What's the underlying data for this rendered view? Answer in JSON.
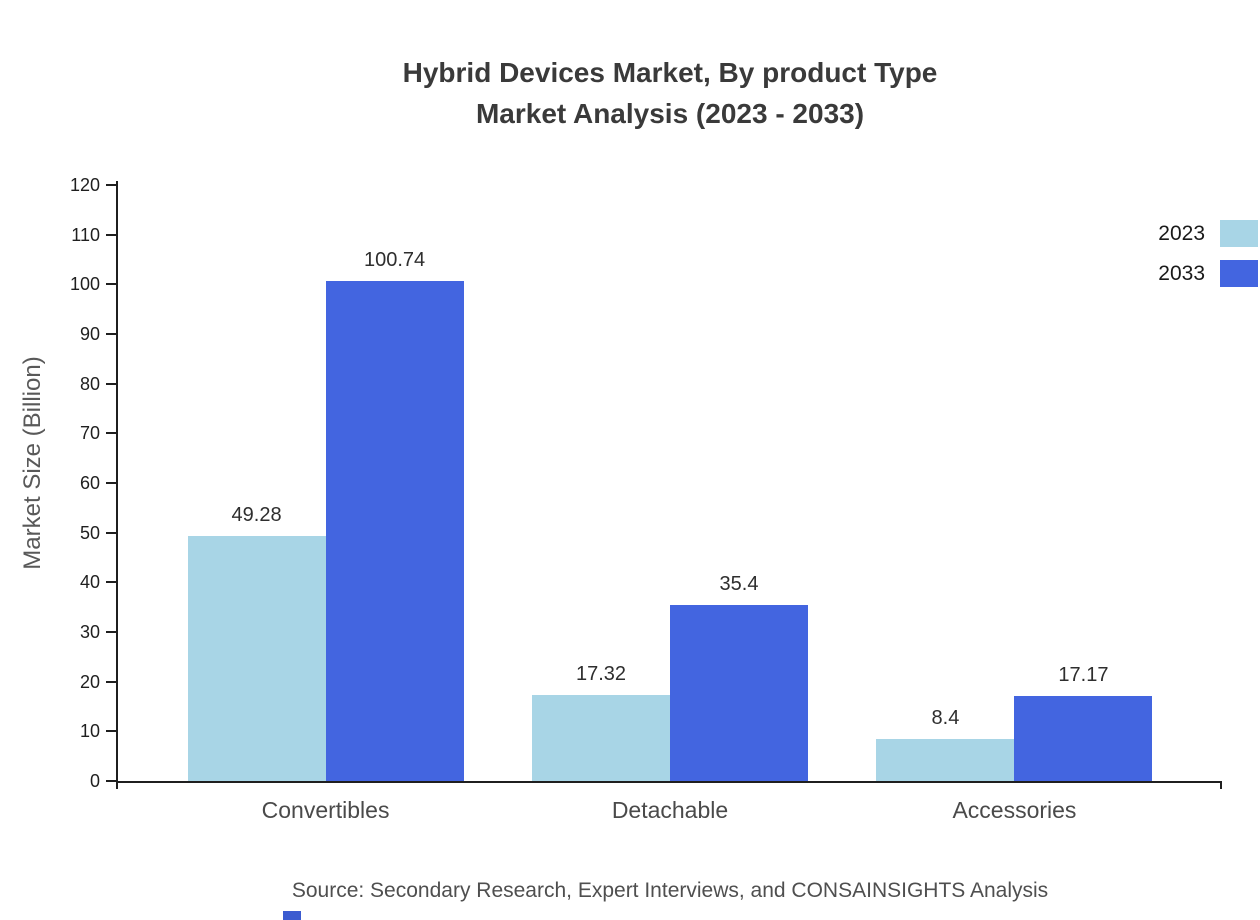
{
  "title": {
    "line1": "Hybrid Devices Market, By product Type",
    "line2": "Market Analysis (2023 - 2033)"
  },
  "chart_data": {
    "type": "bar",
    "categories": [
      "Convertibles",
      "Detachable",
      "Accessories"
    ],
    "series": [
      {
        "name": "2023",
        "color": "#a8d5e6",
        "values": [
          49.28,
          17.32,
          8.4
        ]
      },
      {
        "name": "2033",
        "color": "#4365e0",
        "values": [
          100.74,
          35.4,
          17.17
        ]
      }
    ],
    "value_labels": [
      [
        "49.28",
        "17.32",
        "8.4"
      ],
      [
        "100.74",
        "35.4",
        "17.17"
      ]
    ],
    "title": "Hybrid Devices Market, By product Type Market Analysis (2023 - 2033)",
    "xlabel": "",
    "ylabel": "Market Size (Billion)",
    "ylim": [
      0,
      120
    ],
    "yticks": [
      0,
      10,
      20,
      30,
      40,
      50,
      60,
      70,
      80,
      90,
      100,
      110,
      120
    ],
    "grid": false,
    "legend_position": "top-right",
    "legend": [
      "2023",
      "2033"
    ]
  },
  "source": "Source: Secondary Research, Expert Interviews, and CONSAINSIGHTS Analysis",
  "footer": {
    "logo_color": "#3b5bd0"
  }
}
